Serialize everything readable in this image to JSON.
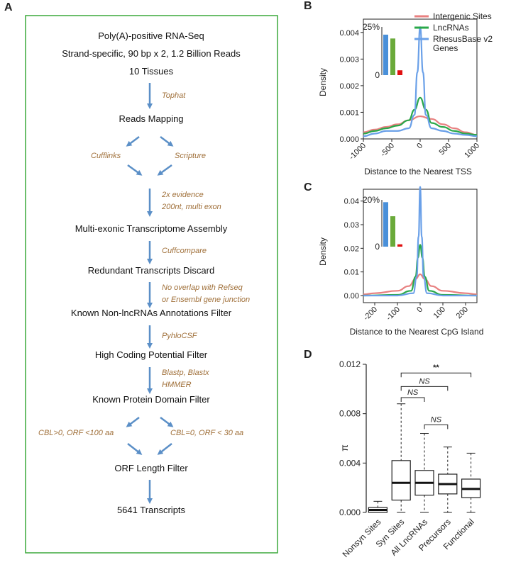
{
  "panels": {
    "a": "A",
    "b": "B",
    "c": "C",
    "d": "D"
  },
  "flowchart": {
    "steps": [
      "Poly(A)-positive RNA-Seq",
      "Strand-specific, 90 bp x 2, 1.2 Billion Reads",
      "10 Tissues",
      "Reads Mapping",
      "Multi-exonic Transcriptome Assembly",
      "Redundant Transcripts Discard",
      "Known Non-lncRNAs Annotations Filter",
      "High Coding Potential Filter",
      "Known Protein Domain Filter",
      "ORF Length Filter",
      "5641 Transcripts"
    ],
    "tools": {
      "tophat": "Tophat",
      "cufflinks": "Cufflinks",
      "scripture": "Scripture",
      "evidence1": "2x evidence",
      "evidence2": "200nt, multi exon",
      "cuffcompare": "Cuffcompare",
      "overlap1": "No overlap with Refseq",
      "overlap2": "or Ensembl gene junction",
      "phylocsf": "PyhloCSF",
      "blast": "Blastp, Blastx",
      "hmmer": "HMMER",
      "cbl_left": "CBL>0, ORF <100 aa",
      "cbl_right": "CBL=0, ORF < 30 aa"
    },
    "colors": {
      "border": "#3aa83a",
      "arrow": "#5b8fc7",
      "tool": "#a0703a"
    }
  },
  "chart_data": [
    {
      "panel": "B",
      "type": "line",
      "xlabel": "Distance to the Nearest TSS",
      "ylabel": "Density",
      "xlim": [
        -1000,
        1000
      ],
      "ylim": [
        0,
        0.0045
      ],
      "xticks": [
        -1000,
        -500,
        0,
        500,
        1000
      ],
      "yticks": [
        0.0,
        0.001,
        0.002,
        0.003,
        0.004
      ],
      "ytick_labels": [
        "0.000",
        "0.001",
        "0.002",
        "0.003",
        "0.004"
      ],
      "legend": [
        "Intergenic Sites",
        "LncRNAs",
        "RhesusBase v2 Genes"
      ],
      "legend_placement": "top-right",
      "series": [
        {
          "name": "Intergenic Sites",
          "color": "#e88080",
          "x": [
            -1000,
            -800,
            -600,
            -400,
            -200,
            0,
            200,
            400,
            600,
            800,
            1000
          ],
          "y": [
            0.00025,
            0.00035,
            0.00045,
            0.00055,
            0.0007,
            0.00085,
            0.00075,
            0.00055,
            0.0004,
            0.00025,
            0.00015
          ]
        },
        {
          "name": "LncRNAs",
          "color": "#2aa84a",
          "x": [
            -1000,
            -800,
            -600,
            -400,
            -200,
            -100,
            0,
            100,
            200,
            400,
            600,
            800,
            1000
          ],
          "y": [
            0.0002,
            0.0003,
            0.0004,
            0.0005,
            0.0007,
            0.0011,
            0.00155,
            0.0011,
            0.0006,
            0.00045,
            0.0003,
            0.0002,
            0.00015
          ]
        },
        {
          "name": "RhesusBase v2 Genes",
          "color": "#6aa0e8",
          "x": [
            -1000,
            -800,
            -600,
            -400,
            -200,
            -100,
            -50,
            0,
            50,
            100,
            200,
            400,
            600,
            800,
            1000
          ],
          "y": [
            0.0001,
            0.0002,
            0.0003,
            0.0003,
            0.0004,
            0.0009,
            0.0025,
            0.0042,
            0.0025,
            0.0009,
            0.0004,
            0.0003,
            0.0002,
            0.00015,
            0.0001
          ]
        }
      ],
      "inset": {
        "top_label": "25%",
        "bottom_label": "0",
        "ymax": 25,
        "bars": [
          {
            "value": 21,
            "color": "#4a90d9"
          },
          {
            "value": 19,
            "color": "#6aaa3a"
          },
          {
            "value": 2.5,
            "color": "#e01010"
          }
        ]
      }
    },
    {
      "panel": "C",
      "type": "line",
      "xlabel": "Distance to the Nearest CpG Island",
      "ylabel": "Density",
      "xlim": [
        -250,
        250
      ],
      "ylim": [
        -0.003,
        0.045
      ],
      "xticks": [
        -200,
        -100,
        0,
        100,
        200
      ],
      "yticks": [
        0.0,
        0.01,
        0.02,
        0.03,
        0.04
      ],
      "ytick_labels": [
        "0.00",
        "0.01",
        "0.02",
        "0.03",
        "0.04"
      ],
      "series": [
        {
          "name": "Intergenic Sites",
          "color": "#e88080",
          "x": [
            -250,
            -200,
            -100,
            -50,
            -20,
            0,
            20,
            50,
            100,
            200,
            250
          ],
          "y": [
            0.0005,
            0.001,
            0.002,
            0.004,
            0.007,
            0.009,
            0.007,
            0.004,
            0.002,
            0.001,
            0.0005
          ]
        },
        {
          "name": "LncRNAs",
          "color": "#2aa84a",
          "x": [
            -250,
            -100,
            -40,
            -20,
            -10,
            0,
            10,
            20,
            40,
            100,
            250
          ],
          "y": [
            0.0,
            0.0003,
            0.002,
            0.008,
            0.016,
            0.0215,
            0.016,
            0.008,
            0.002,
            0.0003,
            0.0
          ]
        },
        {
          "name": "RhesusBase v2 Genes",
          "color": "#6aa0e8",
          "x": [
            -250,
            -100,
            -30,
            -15,
            -7,
            0,
            7,
            15,
            30,
            100,
            250
          ],
          "y": [
            0.0,
            0.0,
            0.001,
            0.008,
            0.025,
            0.046,
            0.025,
            0.008,
            0.001,
            0.0,
            0.0
          ]
        }
      ],
      "inset": {
        "top_label": "20%",
        "bottom_label": "0",
        "ymax": 20,
        "bars": [
          {
            "value": 19,
            "color": "#4a90d9"
          },
          {
            "value": 13,
            "color": "#6aaa3a"
          },
          {
            "value": 1,
            "color": "#e01010"
          }
        ]
      }
    },
    {
      "panel": "D",
      "type": "box",
      "ylabel": "π",
      "ylim": [
        0,
        0.012
      ],
      "yticks": [
        0.0,
        0.004,
        0.008,
        0.012
      ],
      "ytick_labels": [
        "0.000",
        "0.004",
        "0.008",
        "0.012"
      ],
      "categories": [
        "Nonsyn Sites",
        "Syn Sites",
        "All LncRNAs",
        "Precursors",
        "Functional"
      ],
      "boxes": [
        {
          "min": 0.0,
          "q1": 0.0,
          "median": 0.0002,
          "q3": 0.0004,
          "max": 0.0009
        },
        {
          "min": 0.0,
          "q1": 0.001,
          "median": 0.0024,
          "q3": 0.0042,
          "max": 0.0088
        },
        {
          "min": 0.0,
          "q1": 0.0014,
          "median": 0.0024,
          "q3": 0.0034,
          "max": 0.0064
        },
        {
          "min": 0.0,
          "q1": 0.0015,
          "median": 0.0023,
          "q3": 0.0031,
          "max": 0.0053
        },
        {
          "min": 0.0,
          "q1": 0.0012,
          "median": 0.0019,
          "q3": 0.0027,
          "max": 0.0048
        }
      ],
      "significance": [
        {
          "from": 1,
          "to": 4,
          "label": "**",
          "y": 0.0113
        },
        {
          "from": 1,
          "to": 3,
          "label": "NS",
          "y": 0.0102
        },
        {
          "from": 1,
          "to": 2,
          "label": "NS",
          "y": 0.0093
        },
        {
          "from": 2,
          "to": 3,
          "label": "NS",
          "y": 0.0071
        }
      ]
    }
  ]
}
